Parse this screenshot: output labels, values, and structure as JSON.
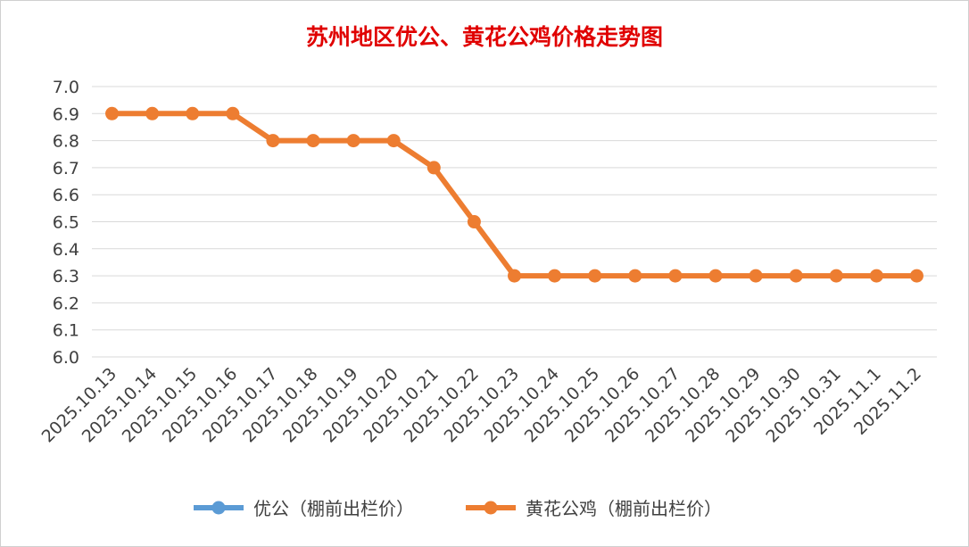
{
  "chart_data": {
    "type": "line",
    "title": "苏州地区优公、黄花公鸡价格走势图",
    "categories": [
      "2025.10.13",
      "2025.10.14",
      "2025.10.15",
      "2025.10.16",
      "2025.10.17",
      "2025.10.18",
      "2025.10.19",
      "2025.10.20",
      "2025.10.21",
      "2025.10.22",
      "2025.10.23",
      "2025.10.24",
      "2025.10.25",
      "2025.10.26",
      "2025.10.27",
      "2025.10.28",
      "2025.10.29",
      "2025.10.30",
      "2025.10.31",
      "2025.11.1",
      "2025.11.2"
    ],
    "ylim": [
      6.0,
      7.0
    ],
    "yticks": [
      "6.0",
      "6.1",
      "6.2",
      "6.3",
      "6.4",
      "6.5",
      "6.6",
      "6.7",
      "6.8",
      "6.9",
      "7.0"
    ],
    "grid": true,
    "legend_position": "bottom",
    "series": [
      {
        "name": "优公（棚前出栏价）",
        "color": "#5b9bd5",
        "values": [
          null,
          null,
          null,
          null,
          null,
          null,
          null,
          null,
          null,
          null,
          null,
          null,
          null,
          null,
          null,
          null,
          null,
          null,
          null,
          null,
          null
        ]
      },
      {
        "name": "黄花公鸡（棚前出栏价）",
        "color": "#ed7d31",
        "values": [
          6.9,
          6.9,
          6.9,
          6.9,
          6.8,
          6.8,
          6.8,
          6.8,
          6.7,
          6.5,
          6.3,
          6.3,
          6.3,
          6.3,
          6.3,
          6.3,
          6.3,
          6.3,
          6.3,
          6.3,
          6.3
        ]
      }
    ]
  }
}
